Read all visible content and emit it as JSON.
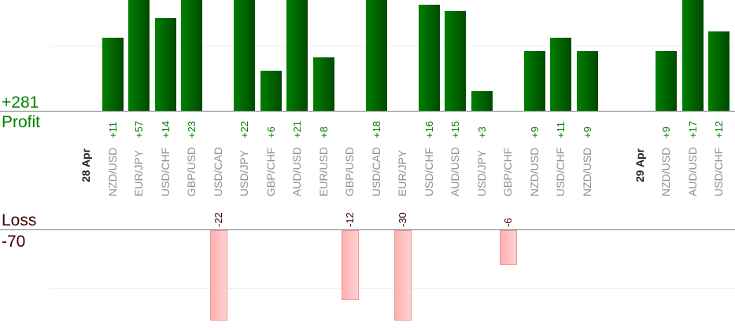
{
  "chart_data": {
    "type": "bar",
    "title": "",
    "profit_total_label": "+281",
    "profit_label": "Profit",
    "loss_label": "Loss",
    "loss_total_label": "-70",
    "ylim_profit": [
      0,
      16
    ],
    "ylim_loss": [
      -15.5,
      0
    ],
    "grid": true,
    "columns": [
      {
        "date": "28 Apr"
      },
      {
        "pair": "NZD/USD",
        "value": 11,
        "label": "+11"
      },
      {
        "pair": "EUR/JPY",
        "value": 57,
        "label": "+57"
      },
      {
        "pair": "USD/CHF",
        "value": 14,
        "label": "+14"
      },
      {
        "pair": "GBP/USD",
        "value": 23,
        "label": "+23"
      },
      {
        "pair": "USD/CAD",
        "value": -22,
        "label": "-22"
      },
      {
        "pair": "USD/JPY",
        "value": 22,
        "label": "+22"
      },
      {
        "pair": "GBP/CHF",
        "value": 6,
        "label": "+6"
      },
      {
        "pair": "AUD/USD",
        "value": 21,
        "label": "+21"
      },
      {
        "pair": "EUR/USD",
        "value": 8,
        "label": "+8"
      },
      {
        "pair": "GBP/USD",
        "value": -12,
        "label": "-12"
      },
      {
        "pair": "USD/CAD",
        "value": 18,
        "label": "+18"
      },
      {
        "pair": "EUR/JPY",
        "value": -30,
        "label": "-30"
      },
      {
        "pair": "USD/CHF",
        "value": 16,
        "label": "+16"
      },
      {
        "pair": "AUD/USD",
        "value": 15,
        "label": "+15"
      },
      {
        "pair": "USD/JPY",
        "value": 3,
        "label": "+3"
      },
      {
        "pair": "GBP/CHF",
        "value": -6,
        "label": "-6"
      },
      {
        "pair": "NZD/USD",
        "value": 9,
        "label": "+9"
      },
      {
        "pair": "USD/CHF",
        "value": 11,
        "label": "+11"
      },
      {
        "pair": "NZD/USD",
        "value": 9,
        "label": "+9"
      },
      {
        "spacer": true
      },
      {
        "date": "29 Apr"
      },
      {
        "pair": "NZD/USD",
        "value": 9,
        "label": "+9"
      },
      {
        "pair": "AUD/USD",
        "value": 17,
        "label": "+17"
      },
      {
        "pair": "USD/CHF",
        "value": 12,
        "label": "+12"
      }
    ],
    "colors": {
      "profit": "#008000",
      "loss": "#ffb0b0",
      "loss_text": "#400000",
      "pair_text": "#909090"
    }
  }
}
